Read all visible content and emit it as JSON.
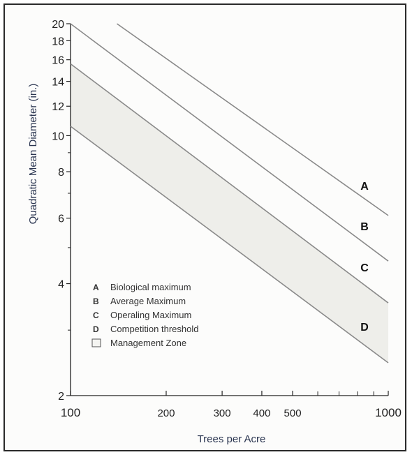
{
  "chart_data": {
    "type": "line",
    "title": "",
    "xlabel": "Trees per Acre",
    "ylabel": "Quadratic Mean Diameter (in.)",
    "x_scale": "log",
    "y_scale": "log",
    "xlim": [
      100,
      1000
    ],
    "ylim": [
      2,
      20
    ],
    "x_ticks": [
      100,
      200,
      300,
      400,
      500,
      1000
    ],
    "x_tick_labels": [
      "100",
      "200",
      "300",
      "400",
      "500",
      "1000"
    ],
    "x_minor_ticks": [
      600,
      700,
      800,
      900
    ],
    "y_ticks": [
      2,
      4,
      6,
      8,
      10,
      12,
      14,
      16,
      18,
      20
    ],
    "y_tick_labels": [
      "2",
      "4",
      "6",
      "8",
      "10",
      "12",
      "14",
      "16",
      "18",
      "20"
    ],
    "y_minor_ticks": [
      3,
      5,
      7,
      9
    ],
    "grid": false,
    "legend_position": "bottom-left",
    "series": [
      {
        "key": "A",
        "label": "Biological maximum",
        "x": [
          140,
          1000
        ],
        "y": [
          20,
          6.1
        ]
      },
      {
        "key": "B",
        "label": "Average Maximum",
        "x": [
          100,
          1000
        ],
        "y": [
          20,
          4.6
        ]
      },
      {
        "key": "C",
        "label": "Operaling Maximum",
        "x": [
          100,
          1000
        ],
        "y": [
          15.6,
          3.55
        ]
      },
      {
        "key": "D",
        "label": "Competition threshold",
        "x": [
          100,
          1000
        ],
        "y": [
          10.6,
          2.45
        ]
      }
    ],
    "shaded_zone": {
      "label": "Management Zone",
      "between": [
        "C",
        "D"
      ],
      "color": "#eeeeea"
    },
    "line_color": "#8a8a8a"
  }
}
